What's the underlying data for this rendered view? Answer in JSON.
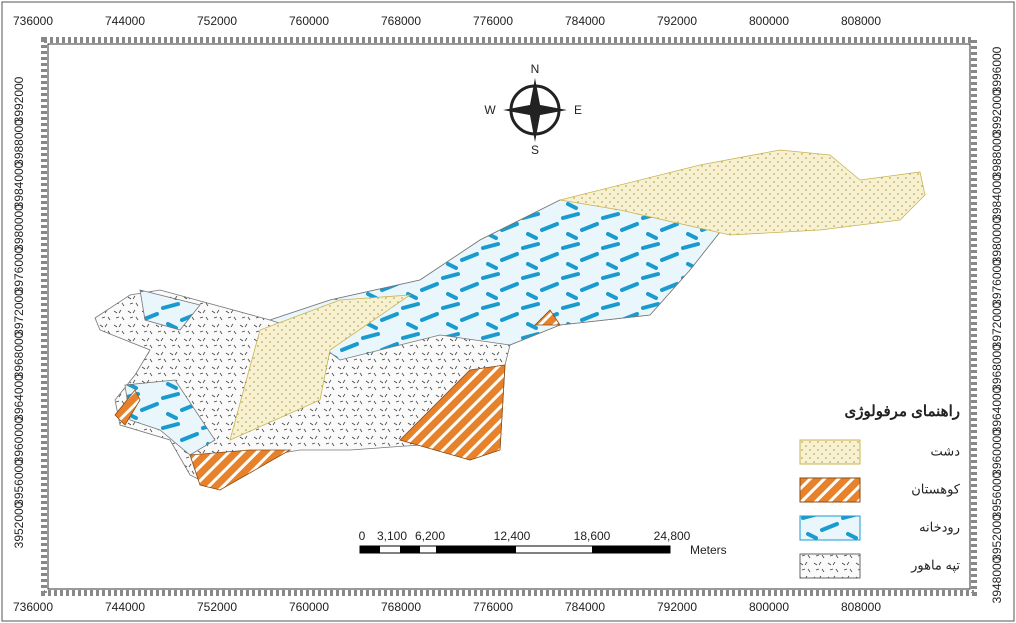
{
  "map": {
    "x_labels": [
      736000,
      744000,
      752000,
      760000,
      768000,
      776000,
      784000,
      792000,
      800000,
      808000
    ],
    "left_labels": [
      3992000,
      3988000,
      3984000,
      3980000,
      3976000,
      3972000,
      3968000,
      3964000,
      3960000,
      3956000,
      3952000
    ],
    "right_labels": [
      3996000,
      3992000,
      3988000,
      3984000,
      3980000,
      3976000,
      3972000,
      3968000,
      3964000,
      3960000,
      3956000,
      3952000,
      3948000
    ],
    "compass": {
      "n": "N",
      "e": "E",
      "s": "S",
      "w": "W"
    },
    "scale_bar": {
      "labels": [
        "0",
        "3,100",
        "6,200",
        "12,400",
        "18,600",
        "24,800"
      ],
      "unit": "Meters"
    },
    "legend": {
      "title": "راهنمای مرفولوژی",
      "items": [
        "دشت",
        "کوهستان",
        "رودخانه",
        "تپه ماهور"
      ]
    }
  }
}
